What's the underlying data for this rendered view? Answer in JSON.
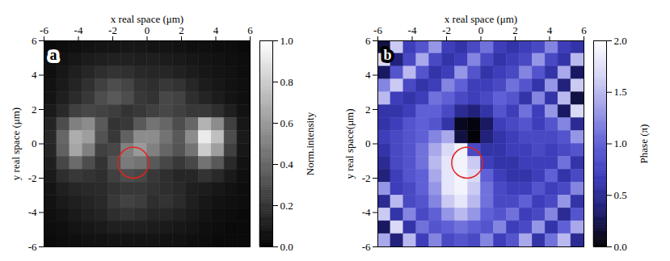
{
  "chart_data": [
    {
      "type": "heatmap",
      "panel": "a",
      "x_label": "x real space (μm)",
      "y_label": "y real space (μm)",
      "xlim": [
        -6,
        6
      ],
      "ylim": [
        -6,
        6
      ],
      "xticks": [
        -6,
        -4,
        -2,
        0,
        2,
        4,
        6
      ],
      "yticks": [
        -6,
        -4,
        -2,
        0,
        2,
        4,
        6
      ],
      "x_edges": [
        -6,
        -5.25,
        -4.5,
        -3.75,
        -3,
        -2.25,
        -1.5,
        -0.75,
        0,
        0.75,
        1.5,
        2.25,
        3,
        3.75,
        4.5,
        5.25,
        6
      ],
      "y_edges": [
        6,
        5.25,
        4.5,
        3.75,
        3,
        2.25,
        1.5,
        0.75,
        0,
        -0.75,
        -1.5,
        -2.25,
        -3,
        -3.75,
        -4.5,
        -5.25,
        -6
      ],
      "cells": [
        [
          0.04,
          0.05,
          0.06,
          0.07,
          0.08,
          0.08,
          0.09,
          0.09,
          0.08,
          0.08,
          0.07,
          0.06,
          0.06,
          0.05,
          0.05,
          0.04
        ],
        [
          0.05,
          0.07,
          0.09,
          0.11,
          0.12,
          0.13,
          0.13,
          0.12,
          0.12,
          0.11,
          0.1,
          0.09,
          0.08,
          0.07,
          0.06,
          0.05
        ],
        [
          0.06,
          0.09,
          0.12,
          0.15,
          0.18,
          0.2,
          0.19,
          0.16,
          0.15,
          0.15,
          0.13,
          0.11,
          0.09,
          0.08,
          0.07,
          0.05
        ],
        [
          0.07,
          0.1,
          0.14,
          0.19,
          0.25,
          0.3,
          0.27,
          0.2,
          0.18,
          0.22,
          0.2,
          0.15,
          0.11,
          0.09,
          0.07,
          0.06
        ],
        [
          0.08,
          0.12,
          0.17,
          0.22,
          0.3,
          0.35,
          0.3,
          0.22,
          0.2,
          0.28,
          0.26,
          0.18,
          0.14,
          0.11,
          0.08,
          0.06
        ],
        [
          0.1,
          0.16,
          0.25,
          0.28,
          0.26,
          0.24,
          0.2,
          0.22,
          0.25,
          0.28,
          0.25,
          0.22,
          0.22,
          0.18,
          0.12,
          0.07
        ],
        [
          0.14,
          0.3,
          0.5,
          0.55,
          0.35,
          0.2,
          0.22,
          0.35,
          0.45,
          0.4,
          0.3,
          0.4,
          0.7,
          0.55,
          0.25,
          0.09
        ],
        [
          0.16,
          0.4,
          0.68,
          0.62,
          0.32,
          0.22,
          0.38,
          0.55,
          0.55,
          0.45,
          0.35,
          0.55,
          0.92,
          0.75,
          0.3,
          0.1
        ],
        [
          0.15,
          0.38,
          0.65,
          0.5,
          0.25,
          0.28,
          0.5,
          0.6,
          0.5,
          0.4,
          0.33,
          0.45,
          0.8,
          0.62,
          0.25,
          0.09
        ],
        [
          0.12,
          0.28,
          0.42,
          0.3,
          0.2,
          0.32,
          0.48,
          0.45,
          0.35,
          0.28,
          0.22,
          0.28,
          0.45,
          0.35,
          0.16,
          0.07
        ],
        [
          0.1,
          0.18,
          0.22,
          0.2,
          0.18,
          0.25,
          0.3,
          0.28,
          0.22,
          0.18,
          0.15,
          0.15,
          0.2,
          0.16,
          0.1,
          0.06
        ],
        [
          0.08,
          0.12,
          0.15,
          0.16,
          0.17,
          0.2,
          0.22,
          0.22,
          0.2,
          0.18,
          0.16,
          0.12,
          0.11,
          0.09,
          0.07,
          0.05
        ],
        [
          0.07,
          0.1,
          0.12,
          0.14,
          0.16,
          0.22,
          0.26,
          0.24,
          0.18,
          0.2,
          0.17,
          0.12,
          0.09,
          0.07,
          0.06,
          0.05
        ],
        [
          0.06,
          0.08,
          0.1,
          0.12,
          0.14,
          0.18,
          0.2,
          0.18,
          0.15,
          0.15,
          0.13,
          0.1,
          0.08,
          0.06,
          0.05,
          0.04
        ],
        [
          0.05,
          0.06,
          0.08,
          0.09,
          0.1,
          0.12,
          0.12,
          0.12,
          0.11,
          0.1,
          0.09,
          0.08,
          0.06,
          0.05,
          0.04,
          0.04
        ],
        [
          0.04,
          0.05,
          0.06,
          0.07,
          0.07,
          0.08,
          0.08,
          0.08,
          0.08,
          0.07,
          0.07,
          0.06,
          0.05,
          0.04,
          0.04,
          0.04
        ]
      ],
      "colorbar": {
        "label": "Norm.intensity",
        "range": [
          0,
          1
        ],
        "ticks": [
          {
            "value": 0,
            "label": "0.0"
          },
          0.2,
          0.4,
          0.6,
          0.8,
          {
            "value": 1,
            "label": "1.0"
          }
        ],
        "colors": [
          "#000000",
          "#ffffff"
        ]
      },
      "circle": {
        "x": -0.8,
        "y": -1.1,
        "r": 0.9,
        "color": "#e3231c"
      }
    },
    {
      "type": "heatmap",
      "panel": "b",
      "x_label": "x real space (μm)",
      "y_label": "y real space(μm)",
      "xlim": [
        -6,
        6
      ],
      "ylim": [
        -6,
        6
      ],
      "xticks": [
        -6,
        -4,
        -2,
        0,
        2,
        4,
        6
      ],
      "yticks": [
        -6,
        -4,
        -2,
        0,
        2,
        4,
        6
      ],
      "x_edges": [
        -6,
        -5.25,
        -4.5,
        -3.75,
        -3,
        -2.25,
        -1.5,
        -0.75,
        0,
        0.75,
        1.5,
        2.25,
        3,
        3.75,
        4.5,
        5.25,
        6
      ],
      "y_edges": [
        6,
        5.25,
        4.5,
        3.75,
        3,
        2.25,
        1.5,
        0.75,
        0,
        -0.75,
        -1.5,
        -2.25,
        -3,
        -3.75,
        -4.5,
        -5.25,
        -6
      ],
      "cells": [
        [
          0.2,
          1.6,
          0.7,
          0.9,
          1.3,
          0.7,
          0.6,
          0.8,
          1.1,
          0.7,
          0.6,
          0.7,
          0.8,
          1.2,
          0.7,
          0.6
        ],
        [
          1.7,
          0.4,
          0.8,
          1.4,
          0.8,
          0.6,
          0.7,
          1.2,
          0.8,
          0.6,
          0.7,
          0.8,
          1.3,
          0.8,
          0.6,
          1.5
        ],
        [
          0.3,
          0.9,
          1.5,
          0.9,
          0.6,
          0.7,
          1.3,
          0.9,
          0.6,
          0.7,
          0.8,
          1.2,
          0.9,
          0.6,
          1.4,
          0.3
        ],
        [
          1.2,
          1.6,
          0.8,
          0.6,
          0.7,
          1.2,
          1.0,
          0.7,
          0.7,
          0.8,
          1.1,
          0.9,
          0.6,
          1.3,
          0.4,
          1.6
        ],
        [
          1.5,
          0.7,
          0.6,
          0.7,
          1.1,
          1.0,
          0.8,
          0.7,
          0.8,
          1.0,
          0.9,
          0.6,
          1.2,
          0.6,
          1.5,
          0.2
        ],
        [
          0.6,
          0.6,
          0.7,
          1.0,
          1.0,
          0.8,
          0.5,
          0.4,
          0.6,
          0.9,
          0.7,
          1.1,
          0.7,
          1.3,
          0.3,
          1.7
        ],
        [
          0.6,
          0.7,
          0.9,
          1.0,
          0.9,
          0.6,
          0.1,
          0.05,
          0.3,
          0.7,
          0.8,
          0.9,
          0.7,
          0.9,
          1.2,
          0.5
        ],
        [
          0.7,
          0.8,
          0.9,
          1.0,
          1.2,
          1.4,
          0.2,
          0.02,
          0.4,
          0.6,
          0.7,
          0.8,
          0.8,
          0.8,
          0.9,
          1.3
        ],
        [
          0.6,
          0.8,
          0.9,
          1.1,
          1.4,
          1.7,
          1.9,
          0.8,
          0.6,
          0.6,
          0.7,
          0.7,
          0.8,
          0.7,
          0.8,
          0.9
        ],
        [
          0.5,
          0.8,
          0.9,
          1.1,
          1.5,
          1.8,
          1.9,
          1.6,
          0.7,
          0.6,
          0.6,
          0.7,
          0.7,
          0.7,
          1.1,
          0.6
        ],
        [
          0.4,
          0.7,
          0.9,
          1.0,
          1.4,
          1.8,
          1.9,
          1.7,
          1.0,
          0.7,
          0.6,
          0.6,
          0.7,
          1.0,
          0.6,
          0.8
        ],
        [
          1.3,
          0.7,
          0.8,
          1.0,
          1.3,
          1.8,
          1.9,
          1.6,
          1.1,
          0.8,
          0.7,
          0.7,
          0.9,
          0.7,
          0.8,
          1.2
        ],
        [
          0.5,
          1.5,
          0.8,
          0.9,
          1.2,
          1.6,
          1.8,
          1.5,
          1.1,
          0.8,
          0.8,
          1.0,
          0.7,
          0.8,
          1.3,
          0.6
        ],
        [
          1.6,
          0.6,
          1.2,
          0.8,
          1.0,
          1.3,
          1.5,
          1.3,
          1.0,
          0.9,
          1.1,
          0.7,
          0.8,
          1.2,
          0.5,
          0.9
        ],
        [
          0.3,
          1.7,
          0.6,
          1.1,
          0.9,
          1.0,
          1.1,
          1.0,
          0.9,
          1.2,
          0.7,
          0.8,
          1.3,
          0.6,
          1.0,
          1.4
        ],
        [
          1.4,
          0.4,
          1.5,
          0.7,
          1.2,
          0.8,
          0.9,
          0.8,
          1.2,
          0.7,
          0.9,
          1.4,
          0.6,
          1.1,
          1.5,
          0.5
        ]
      ],
      "colorbar": {
        "label": "Phase (π)",
        "range": [
          0,
          2
        ],
        "ticks": [
          {
            "value": 0,
            "label": "0.0"
          },
          0.5,
          {
            "value": 1,
            "label": "1.0"
          },
          1.5,
          {
            "value": 2,
            "label": "2.0"
          }
        ],
        "colors": [
          "#000000",
          "#1c1c6e",
          "#3a3ab8",
          "#5f5fd6",
          "#9c9ce8",
          "#d6d6f6",
          "#ffffff"
        ]
      },
      "circle": {
        "x": -0.8,
        "y": -1.1,
        "r": 0.9,
        "color": "#e3231c"
      }
    }
  ]
}
